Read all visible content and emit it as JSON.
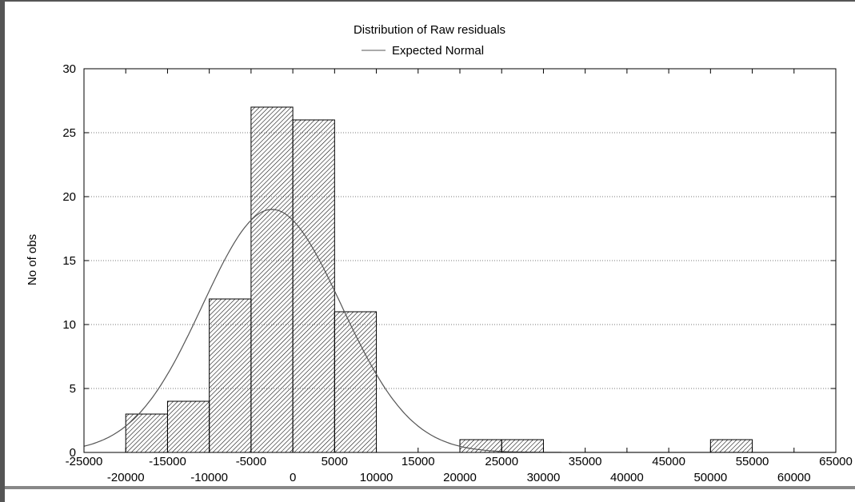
{
  "chart_data": {
    "type": "bar",
    "title": "Distribution of Raw residuals",
    "legend": {
      "entries": [
        "Expected Normal"
      ],
      "placement": "top-center"
    },
    "xlabel": "",
    "ylabel": "No of obs",
    "xlim": [
      -25000,
      65000
    ],
    "ylim": [
      0,
      30
    ],
    "grid": "horizontal dotted",
    "bin_width": 5000,
    "bins": [
      {
        "start": -20000,
        "end": -15000,
        "count": 3
      },
      {
        "start": -15000,
        "end": -10000,
        "count": 4
      },
      {
        "start": -10000,
        "end": -5000,
        "count": 12
      },
      {
        "start": -5000,
        "end": 0,
        "count": 27
      },
      {
        "start": 0,
        "end": 5000,
        "count": 26
      },
      {
        "start": 5000,
        "end": 10000,
        "count": 11
      },
      {
        "start": 10000,
        "end": 15000,
        "count": 0
      },
      {
        "start": 15000,
        "end": 20000,
        "count": 0
      },
      {
        "start": 20000,
        "end": 25000,
        "count": 1
      },
      {
        "start": 25000,
        "end": 30000,
        "count": 1
      },
      {
        "start": 30000,
        "end": 35000,
        "count": 0
      },
      {
        "start": 35000,
        "end": 40000,
        "count": 0
      },
      {
        "start": 40000,
        "end": 45000,
        "count": 0
      },
      {
        "start": 45000,
        "end": 50000,
        "count": 0
      },
      {
        "start": 50000,
        "end": 55000,
        "count": 1
      }
    ],
    "normal_curve": {
      "name": "Expected Normal",
      "peak_x": -2500,
      "peak_y": 19,
      "sigma": 8300
    },
    "y_ticks": [
      0,
      5,
      10,
      15,
      20,
      25,
      30
    ],
    "x_ticks_upper": [
      "-25000",
      "-15000",
      "-5000",
      "5000",
      "15000",
      "25000",
      "35000",
      "45000",
      "55000",
      "65000"
    ],
    "x_ticks_lower": [
      "-20000",
      "-10000",
      "0",
      "10000",
      "20000",
      "30000",
      "40000",
      "50000",
      "60000"
    ],
    "colors": {
      "bar_fill": "#ffffff",
      "bar_hatch": "#000000",
      "curve": "#555555",
      "grid": "#7a7a7a",
      "frame": "#555555"
    }
  }
}
